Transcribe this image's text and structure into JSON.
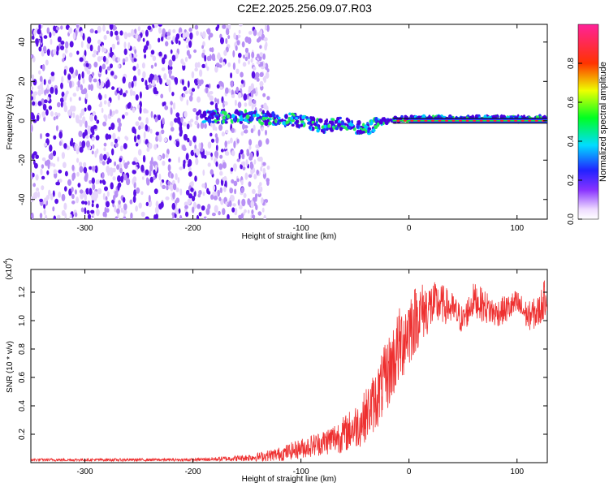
{
  "title": "C2E2.2025.256.09.07.R03",
  "colors": {
    "snr_line": "#ee3030",
    "ridge": "#22ee33",
    "baseline": "#000000",
    "frame": "#000000",
    "background": "#ffffff"
  },
  "chart_data": [
    {
      "type": "heatmap",
      "title": "C2E2.2025.256.09.07.R03",
      "xlabel": "Height of straight line (km)",
      "ylabel": "Frequency (Hz)",
      "xlim": [
        -350,
        128
      ],
      "ylim": [
        -50,
        49
      ],
      "xticks": [
        -300,
        -200,
        -100,
        0,
        100
      ],
      "yticks": [
        -40,
        -20,
        0,
        20,
        40
      ],
      "xtick_labels": [
        "-300",
        "-200",
        "-100",
        "0",
        "100"
      ],
      "ytick_labels": [
        "-40",
        "-20",
        "0",
        "20",
        "40"
      ],
      "description_features": {
        "noise_region_x": [
          -350,
          -140
        ],
        "ridge_x": [
          -190,
          128
        ],
        "ridge_freq": [
          [
            -190,
            2
          ],
          [
            -150,
            2
          ],
          [
            -120,
            1
          ],
          [
            -100,
            0
          ],
          [
            -90,
            -1
          ],
          [
            -80,
            -3
          ],
          [
            -70,
            -2
          ],
          [
            -60,
            -1
          ],
          [
            -50,
            -3
          ],
          [
            -40,
            -5
          ],
          [
            -30,
            -1
          ],
          [
            -20,
            0
          ],
          [
            -10,
            1
          ],
          [
            0,
            1
          ],
          [
            20,
            1
          ],
          [
            60,
            1
          ],
          [
            100,
            1
          ],
          [
            128,
            1
          ]
        ],
        "baseline_x": [
          0,
          128
        ],
        "baseline_freq": 0
      },
      "colorbar": {
        "label": "Normalized spectral amplitude",
        "range": [
          0,
          1
        ],
        "ticks": [
          0.0,
          0.2,
          0.4,
          0.6,
          0.8
        ],
        "tick_labels": [
          "0.0",
          "0.2",
          "0.4",
          "0.6",
          "0.8"
        ]
      }
    },
    {
      "type": "line",
      "xlabel": "Height of straight line (km)",
      "ylabel": "SNR (10 * v/v)",
      "y_exponent_label": "(x10",
      "y_exponent_power": "4",
      "y_exponent_close": ")",
      "xlim": [
        -350,
        128
      ],
      "ylim": [
        0,
        1.36
      ],
      "xticks": [
        -300,
        -200,
        -100,
        0,
        100
      ],
      "yticks": [
        0.2,
        0.4,
        0.6,
        0.8,
        1.0,
        1.2
      ],
      "xtick_labels": [
        "-300",
        "-200",
        "-100",
        "0",
        "100"
      ],
      "ytick_labels": [
        "0.2",
        "0.4",
        "0.6",
        "0.8",
        "1.0",
        "1.2"
      ],
      "series": [
        {
          "name": "SNR",
          "envelope_x": [
            -350,
            -300,
            -250,
            -200,
            -160,
            -140,
            -120,
            -100,
            -80,
            -60,
            -45,
            -30,
            -20,
            -10,
            0,
            10,
            20,
            30,
            40,
            50,
            60,
            70,
            80,
            90,
            100,
            110,
            120,
            128
          ],
          "envelope_mean": [
            0.02,
            0.02,
            0.02,
            0.02,
            0.03,
            0.04,
            0.06,
            0.1,
            0.14,
            0.2,
            0.28,
            0.45,
            0.62,
            0.8,
            0.95,
            1.05,
            1.1,
            1.12,
            1.08,
            1.0,
            1.15,
            1.1,
            1.05,
            1.08,
            1.12,
            1.03,
            1.06,
            1.2
          ],
          "envelope_amp": [
            0.01,
            0.01,
            0.01,
            0.01,
            0.02,
            0.03,
            0.05,
            0.07,
            0.09,
            0.13,
            0.17,
            0.22,
            0.26,
            0.28,
            0.28,
            0.22,
            0.18,
            0.14,
            0.12,
            0.1,
            0.12,
            0.12,
            0.1,
            0.1,
            0.1,
            0.1,
            0.12,
            0.14
          ]
        }
      ]
    }
  ]
}
